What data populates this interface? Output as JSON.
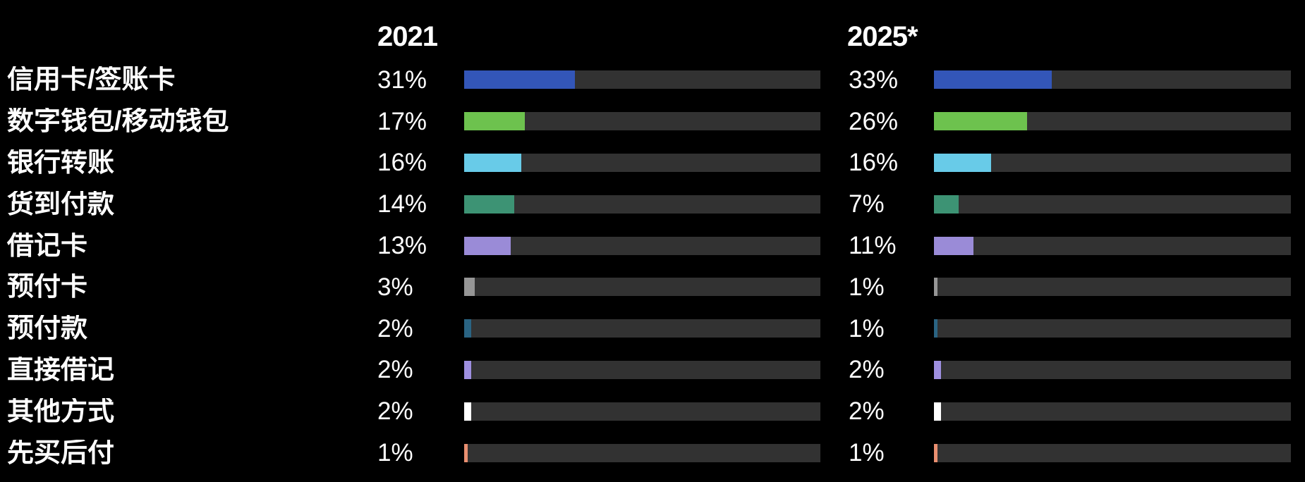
{
  "chart": {
    "columns": [
      {
        "year": "2021"
      },
      {
        "year": "2025*"
      }
    ],
    "rows": [
      {
        "label": "信用卡/签账卡",
        "pct_2021": "31%",
        "pct_2025": "33%",
        "v2021": 31,
        "v2025": 33,
        "color": "#3356b8"
      },
      {
        "label": "数字钱包/移动钱包",
        "pct_2021": "17%",
        "pct_2025": "26%",
        "v2021": 17,
        "v2025": 26,
        "color": "#6dc24e"
      },
      {
        "label": "银行转账",
        "pct_2021": "16%",
        "pct_2025": "16%",
        "v2021": 16,
        "v2025": 16,
        "color": "#68cbe8"
      },
      {
        "label": "货到付款",
        "pct_2021": "14%",
        "pct_2025": "7%",
        "v2021": 14,
        "v2025": 7,
        "color": "#3d9374"
      },
      {
        "label": "借记卡",
        "pct_2021": "13%",
        "pct_2025": "11%",
        "v2021": 13,
        "v2025": 11,
        "color": "#9a8bd7"
      },
      {
        "label": "预付卡",
        "pct_2021": "3%",
        "pct_2025": "1%",
        "v2021": 3,
        "v2025": 1,
        "color": "#969696"
      },
      {
        "label": "预付款",
        "pct_2021": "2%",
        "pct_2025": "1%",
        "v2021": 2,
        "v2025": 1,
        "color": "#2a6483"
      },
      {
        "label": "直接借记",
        "pct_2021": "2%",
        "pct_2025": "2%",
        "v2021": 2,
        "v2025": 2,
        "color": "#9e8fe0"
      },
      {
        "label": "其他方式",
        "pct_2021": "2%",
        "pct_2025": "2%",
        "v2021": 2,
        "v2025": 2,
        "color": "#ffffff"
      },
      {
        "label": "先买后付",
        "pct_2021": "1%",
        "pct_2025": "1%",
        "v2021": 1,
        "v2025": 1,
        "color": "#e98f70"
      }
    ],
    "colors": {
      "background": "#000000",
      "track": "#323232",
      "text": "#ffffff"
    }
  },
  "chart_data": {
    "type": "bar",
    "orientation": "horizontal",
    "title": "",
    "categories": [
      "信用卡/签账卡",
      "数字钱包/移动钱包",
      "银行转账",
      "货到付款",
      "借记卡",
      "预付卡",
      "预付款",
      "直接借记",
      "其他方式",
      "先买后付"
    ],
    "series": [
      {
        "name": "2021",
        "values": [
          31,
          17,
          16,
          14,
          13,
          3,
          2,
          2,
          2,
          1
        ]
      },
      {
        "name": "2025*",
        "values": [
          33,
          26,
          16,
          7,
          11,
          1,
          1,
          2,
          2,
          1
        ]
      }
    ],
    "unit": "%",
    "xlim": [
      0,
      100
    ],
    "grid": false,
    "legend_position": "column-headers-top",
    "bar_colors": [
      "#3356b8",
      "#6dc24e",
      "#68cbe8",
      "#3d9374",
      "#9a8bd7",
      "#969696",
      "#2a6483",
      "#9e8fe0",
      "#ffffff",
      "#e98f70"
    ],
    "track_color": "#323232",
    "background_color": "#000000"
  }
}
